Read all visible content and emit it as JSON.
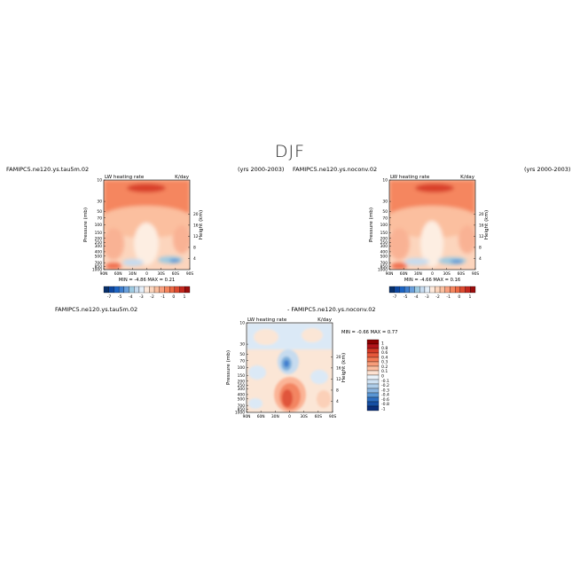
{
  "page": {
    "title": "DJF"
  },
  "chart_data": [
    {
      "type": "heatmap",
      "case": "FAMIPC5.ne120.ys.tau5m.02",
      "years": "(yrs 2000-2003)",
      "title": "LW heating rate",
      "units": "K/day",
      "ylabel": "Pressure (mb)",
      "ylabel_right": "Height (km)",
      "x_ticks": [
        "90N",
        "60N",
        "30N",
        "0",
        "30S",
        "60S",
        "90S"
      ],
      "y_ticks": [
        "10",
        "30",
        "50",
        "70",
        "100",
        "150",
        "200",
        "250",
        "300",
        "400",
        "500",
        "700",
        "850",
        "1000"
      ],
      "height_ticks": [
        "20",
        "16",
        "12",
        "8",
        "4"
      ],
      "stats": {
        "min_label": "MIN =",
        "min": "-4.86",
        "max_label": "MAX =",
        "max": "0.21"
      },
      "colorbar_labels": [
        "-7",
        "-5",
        "-4",
        "-3",
        "-2",
        "-1",
        "0",
        "1"
      ]
    },
    {
      "type": "heatmap",
      "case": "FAMIPC5.ne120.ys.noconv.02",
      "years": "(yrs 2000-2003)",
      "title": "LW heating rate",
      "units": "K/day",
      "ylabel": "Pressure (mb)",
      "ylabel_right": "Height (km)",
      "x_ticks": [
        "90N",
        "60N",
        "30N",
        "0",
        "30S",
        "60S",
        "90S"
      ],
      "y_ticks": [
        "10",
        "30",
        "50",
        "70",
        "100",
        "150",
        "200",
        "250",
        "300",
        "400",
        "500",
        "700",
        "850",
        "1000"
      ],
      "height_ticks": [
        "20",
        "16",
        "12",
        "8",
        "4"
      ],
      "stats": {
        "min_label": "MIN =",
        "min": "-4.66",
        "max_label": "MAX =",
        "max": "0.16"
      },
      "colorbar_labels": [
        "-7",
        "-5",
        "-4",
        "-3",
        "-2",
        "-1",
        "0",
        "1"
      ]
    },
    {
      "type": "heatmap",
      "case": "FAMIPC5.ne120.ys.tau5m.02",
      "case_minus": "- FAMIPC5.ne120.ys.noconv.02",
      "title": "LW heating rate",
      "units": "K/day",
      "ylabel": "Pressure (mb)",
      "ylabel_right": "Height (km)",
      "x_ticks": [
        "90N",
        "60N",
        "30N",
        "0",
        "30S",
        "60S",
        "90S"
      ],
      "y_ticks": [
        "10",
        "30",
        "50",
        "70",
        "100",
        "150",
        "200",
        "250",
        "300",
        "400",
        "500",
        "700",
        "850",
        "1000"
      ],
      "height_ticks": [
        "20",
        "16",
        "12",
        "8",
        "4"
      ],
      "stats": {
        "min_label": "MIN =",
        "min": "-0.66",
        "max_label": "MAX =",
        "max": "0.77"
      },
      "colorbar_labels": [
        "1",
        "0.8",
        "0.6",
        "0.4",
        "0.3",
        "0.2",
        "0.1",
        "0",
        "-0.1",
        "-0.2",
        "-0.3",
        "-0.4",
        "-0.6",
        "-0.8",
        "-1"
      ]
    }
  ]
}
